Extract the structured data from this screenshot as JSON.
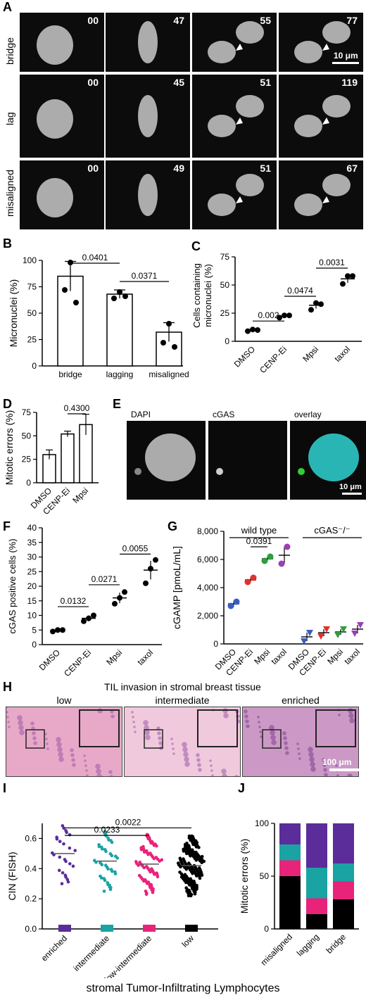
{
  "panelA": {
    "label": "A",
    "rows": [
      {
        "label": "bridge",
        "times": [
          "00",
          "47",
          "55",
          "77"
        ]
      },
      {
        "label": "lag",
        "times": [
          "00",
          "45",
          "51",
          "119"
        ]
      },
      {
        "label": "misaligned",
        "times": [
          "00",
          "49",
          "51",
          "67"
        ]
      }
    ],
    "scalebar": "10 μm"
  },
  "panelE": {
    "label": "E",
    "channels": [
      "DAPI",
      "cGAS",
      "overlay"
    ],
    "scalebar": "10 μm",
    "colors": {
      "dapi": "#2ec8c8",
      "cgas": "#33cc33"
    }
  },
  "panelH": {
    "label": "H",
    "title": "TIL invasion in stromal breast tissue",
    "categories": [
      "low",
      "intermediate",
      "enriched"
    ],
    "scalebar": "100 μm"
  },
  "chart_data": [
    {
      "panel": "B",
      "type": "bar",
      "categories": [
        "bridge",
        "lagging",
        "misaligned"
      ],
      "values": [
        85,
        68,
        32
      ],
      "sem": [
        14,
        4,
        9
      ],
      "points": [
        [
          72,
          98,
          60
        ],
        [
          64,
          70,
          66
        ],
        [
          22,
          40,
          18
        ]
      ],
      "ylabel": "Micronuclei (%)",
      "ylim": [
        0,
        100
      ],
      "yticks": [
        0,
        25,
        50,
        75,
        100
      ],
      "comparisons": [
        {
          "from": 0,
          "to": 1,
          "label": "0.0401"
        },
        {
          "from": 1,
          "to": 2,
          "label": "0.0371"
        }
      ]
    },
    {
      "panel": "C",
      "type": "scatter",
      "categories": [
        "DMSO",
        "CENP-Ei",
        "Mpsi",
        "taxol"
      ],
      "means": [
        10,
        22.5,
        32,
        55.5
      ],
      "sem": [
        0.8,
        1,
        3,
        3.5
      ],
      "points": [
        [
          9,
          10.5,
          10
        ],
        [
          21,
          23,
          23
        ],
        [
          28,
          34,
          33
        ],
        [
          51,
          58,
          58
        ]
      ],
      "ylabel": "Cells containing micronuclei (%)",
      "ylim": [
        0,
        75
      ],
      "yticks": [
        0,
        25,
        50,
        75
      ],
      "comparisons": [
        {
          "from": 0,
          "to": 1,
          "label": "0.002"
        },
        {
          "from": 1,
          "to": 2,
          "label": "0.0474"
        },
        {
          "from": 2,
          "to": 3,
          "label": "0.0031"
        }
      ]
    },
    {
      "panel": "D",
      "type": "bar",
      "categories": [
        "DMSO",
        "CENP-Ei",
        "Mpsi"
      ],
      "values": [
        30,
        52,
        62
      ],
      "sem": [
        5,
        3,
        11
      ],
      "ylabel": "Mitotic errors (%)",
      "ylim": [
        0,
        75
      ],
      "yticks": [
        0,
        25,
        50,
        75
      ],
      "comparisons": [
        {
          "from": 1,
          "to": 2,
          "label": "0.4300"
        }
      ]
    },
    {
      "panel": "F",
      "type": "scatter",
      "categories": [
        "DMSO",
        "CENP-Ei",
        "Mpsi",
        "taxol"
      ],
      "means": [
        4.8,
        9,
        16,
        25.5
      ],
      "sem": [
        0.4,
        1,
        1.8,
        3.2
      ],
      "points": [
        [
          4.5,
          5,
          5
        ],
        [
          8,
          9,
          10
        ],
        [
          14,
          16,
          18
        ],
        [
          21,
          26,
          29
        ]
      ],
      "ylabel": "cGAS positive cells (%)",
      "ylim": [
        0,
        40
      ],
      "yticks": [
        0,
        5,
        10,
        15,
        20,
        25,
        30,
        35,
        40
      ],
      "comparisons": [
        {
          "from": 0,
          "to": 1,
          "label": "0.0132"
        },
        {
          "from": 1,
          "to": 2,
          "label": "0.0271"
        },
        {
          "from": 2,
          "to": 3,
          "label": "0.0055"
        }
      ]
    },
    {
      "panel": "G",
      "type": "scatter",
      "categories": [
        "DMSO",
        "CENP-Ei",
        "Mpsi",
        "taxol",
        "DMSO",
        "CENP-Ei",
        "Mpsi",
        "taxol"
      ],
      "groups": [
        {
          "label": "wild type",
          "from": 0,
          "to": 3
        },
        {
          "label": "cGAS⁻/⁻",
          "from": 4,
          "to": 7
        }
      ],
      "means": [
        2850,
        4550,
        6050,
        6300,
        500,
        800,
        850,
        1050
      ],
      "sem": [
        200,
        150,
        150,
        600,
        300,
        250,
        200,
        300
      ],
      "points": [
        [
          2700,
          3000
        ],
        [
          4400,
          4700
        ],
        [
          5900,
          6200
        ],
        [
          5700,
          6900
        ],
        [
          200,
          800
        ],
        [
          550,
          1050
        ],
        [
          650,
          1050
        ],
        [
          750,
          1350
        ]
      ],
      "colors": [
        "#3b5bbf",
        "#e0322d",
        "#2e9e40",
        "#9b3fb5",
        "#3b5bbf",
        "#e0322d",
        "#2e9e40",
        "#9b3fb5"
      ],
      "ylabel": "cGAMP [pmoL/mL]",
      "ylim": [
        0,
        8000
      ],
      "yticks": [
        "0",
        "2,000",
        "4,000",
        "6,000",
        "8,000"
      ],
      "comparisons": [
        {
          "from": 1,
          "to": 2,
          "label": "0.0391"
        }
      ]
    },
    {
      "panel": "I",
      "type": "scatter",
      "categories": [
        "enriched",
        "intermediate",
        "low-intermediate",
        "low"
      ],
      "means": [
        0.5,
        0.45,
        0.43,
        0.42
      ],
      "sem": [
        0.02,
        0.02,
        0.01,
        0.01
      ],
      "counts": [
        25,
        40,
        70,
        160
      ],
      "colors": [
        "#5b2d9a",
        "#1aa3a3",
        "#e8237a",
        "#000000"
      ],
      "ylabel": "CIN (FISH)",
      "ylim": [
        0,
        0.7
      ],
      "yticks": [
        "0.0",
        "0.2",
        "0.4",
        "0.6"
      ],
      "xlabel": "stromal Tumor-Infiltrating Lymphocytes",
      "comparisons": [
        {
          "from": 0,
          "to": 3,
          "label": "0.0022"
        },
        {
          "from": 0,
          "to": 2,
          "label": "0.0233"
        }
      ]
    },
    {
      "panel": "J",
      "type": "bar",
      "stacked": true,
      "categories": [
        "misaligned",
        "lagging",
        "bridge"
      ],
      "series_colors": [
        "#000000",
        "#e8237a",
        "#1aa3a3",
        "#5b2d9a"
      ],
      "stacks": [
        [
          50,
          15,
          15,
          20
        ],
        [
          14,
          15,
          29,
          42
        ],
        [
          28,
          17,
          17,
          38
        ]
      ],
      "ylabel": "Mitotic errors (%)",
      "ylim": [
        0,
        100
      ],
      "yticks": [
        0,
        50,
        100
      ]
    }
  ]
}
